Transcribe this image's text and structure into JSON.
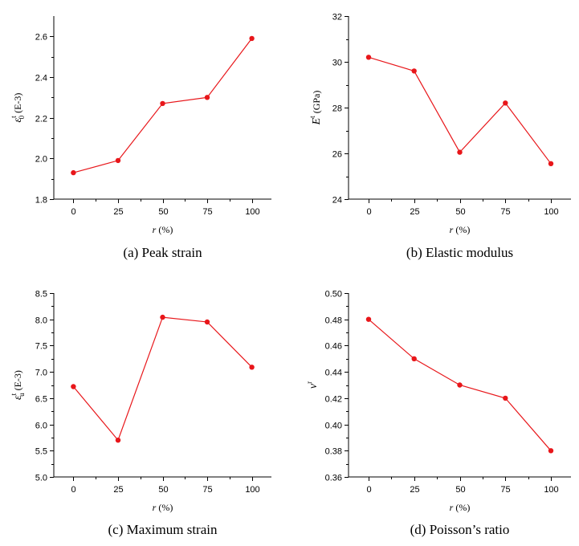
{
  "figure": {
    "series_color": "#e8161a",
    "axis_color": "#000000"
  },
  "chart_data": [
    {
      "id": "a",
      "type": "line",
      "caption": "(a) Peak strain",
      "x": [
        0,
        25,
        50,
        75,
        100
      ],
      "y": [
        1.93,
        1.99,
        2.27,
        2.3,
        2.59
      ],
      "xticks": [
        "0",
        "25",
        "50",
        "75",
        "100"
      ],
      "yticks": [
        "1.8",
        "2.0",
        "2.2",
        "2.4",
        "2.6"
      ],
      "ylim": [
        1.8,
        2.7
      ],
      "xlim": [
        -11,
        111
      ],
      "xlabel": {
        "var": "r",
        "unit": " (%)"
      },
      "ylabel": {
        "sym": "ε",
        "sup": "t",
        "sub": "0",
        "unit": " (E-3)"
      },
      "grid": false,
      "legend": "none"
    },
    {
      "id": "b",
      "type": "line",
      "caption": "(b) Elastic modulus",
      "x": [
        0,
        25,
        50,
        75,
        100
      ],
      "y": [
        30.2,
        29.6,
        26.05,
        28.2,
        25.55
      ],
      "xticks": [
        "0",
        "25",
        "50",
        "75",
        "100"
      ],
      "yticks": [
        "24",
        "26",
        "28",
        "30",
        "32"
      ],
      "ylim": [
        24,
        32
      ],
      "xlim": [
        -11,
        111
      ],
      "xlabel": {
        "var": "r",
        "unit": " (%)"
      },
      "ylabel": {
        "sym": "E",
        "sup": "t",
        "sub": "",
        "unit": " (GPa)"
      },
      "grid": false,
      "legend": "none"
    },
    {
      "id": "c",
      "type": "line",
      "caption": "(c) Maximum strain",
      "x": [
        0,
        25,
        50,
        75,
        100
      ],
      "y": [
        6.72,
        5.7,
        8.04,
        7.95,
        7.09
      ],
      "xticks": [
        "0",
        "25",
        "50",
        "75",
        "100"
      ],
      "yticks": [
        "5.0",
        "5.5",
        "6.0",
        "6.5",
        "7.0",
        "7.5",
        "8.0",
        "8.5"
      ],
      "ylim": [
        5.0,
        8.5
      ],
      "xlim": [
        -11,
        111
      ],
      "xlabel": {
        "var": "r",
        "unit": " (%)"
      },
      "ylabel": {
        "sym": "ε",
        "sup": "t",
        "sub": "u",
        "unit": " (E-3)"
      },
      "grid": false,
      "legend": "none"
    },
    {
      "id": "d",
      "type": "line",
      "caption": "(d) Poisson’s ratio",
      "x": [
        0,
        25,
        50,
        75,
        100
      ],
      "y": [
        0.48,
        0.45,
        0.43,
        0.42,
        0.38
      ],
      "xticks": [
        "0",
        "25",
        "50",
        "75",
        "100"
      ],
      "yticks": [
        "0.36",
        "0.38",
        "0.40",
        "0.42",
        "0.44",
        "0.46",
        "0.48",
        "0.50"
      ],
      "ylim": [
        0.36,
        0.5
      ],
      "xlim": [
        -11,
        111
      ],
      "xlabel": {
        "var": "r",
        "unit": " (%)"
      },
      "ylabel": {
        "sym": "ν",
        "sup": "r",
        "sub": "",
        "unit": ""
      },
      "grid": false,
      "legend": "none"
    }
  ]
}
